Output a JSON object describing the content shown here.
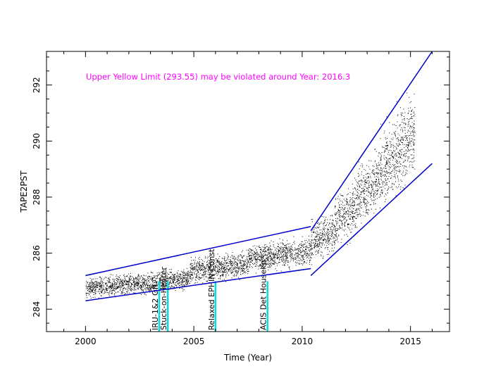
{
  "chart_data": {
    "type": "scatter",
    "title": "",
    "xlabel": "Time (Year)",
    "ylabel": "TAPE2PST",
    "xlim": [
      1998.2,
      2016.8
    ],
    "ylim": [
      283.2,
      293.2
    ],
    "x_ticks": [
      2000,
      2005,
      2010,
      2015
    ],
    "x_tick_labels": [
      "2000",
      "2005",
      "2010",
      "2015"
    ],
    "y_ticks": [
      284,
      286,
      288,
      290,
      292
    ],
    "y_tick_labels": [
      "284",
      "286",
      "288",
      "290",
      "292"
    ],
    "grid": false,
    "legend": "none",
    "annotation": "Upper Yellow  Limit (293.55) may be violated around Year: 2016.3",
    "colors": {
      "points": "#000000",
      "trend_lines": "#0000cc",
      "annotation": "#ff00ff",
      "event_lines": "#00e0e0"
    },
    "events": [
      {
        "x": 2003.4,
        "label": "IRU-1&2 Off"
      },
      {
        "x": 2003.8,
        "label": "Stuck-on-Heater"
      },
      {
        "x": 2006.0,
        "label": "Relaxed EPHIN Const"
      },
      {
        "x": 2008.4,
        "label": "ACIS Det Housekp"
      }
    ],
    "trend_lines": [
      {
        "segment": "early_upper",
        "points": [
          [
            2000.0,
            285.2
          ],
          [
            2010.4,
            286.95
          ]
        ]
      },
      {
        "segment": "early_lower",
        "points": [
          [
            2000.0,
            284.3
          ],
          [
            2010.4,
            285.45
          ]
        ]
      },
      {
        "segment": "late_upper",
        "points": [
          [
            2010.4,
            286.8
          ],
          [
            2016.0,
            293.2
          ]
        ]
      },
      {
        "segment": "late_lower",
        "points": [
          [
            2010.4,
            285.2
          ],
          [
            2016.0,
            289.2
          ]
        ]
      }
    ],
    "scatter_bands": [
      {
        "x_range": [
          2000.0,
          2002.5
        ],
        "y_center": 284.85,
        "y_spread": 0.35
      },
      {
        "x_range": [
          2002.5,
          2004.8
        ],
        "y_center": 285.0,
        "y_spread": 0.4
      },
      {
        "x_range": [
          2004.8,
          2007.5
        ],
        "y_center": 285.5,
        "y_spread": 0.45
      },
      {
        "x_range": [
          2007.5,
          2010.4
        ],
        "y_center": 285.95,
        "y_spread": 0.5
      },
      {
        "x_range": [
          2010.4,
          2011.5
        ],
        "y_center": 286.6,
        "y_spread": 0.7
      },
      {
        "x_range": [
          2011.5,
          2012.5
        ],
        "y_center": 287.4,
        "y_spread": 0.9
      },
      {
        "x_range": [
          2012.5,
          2013.5
        ],
        "y_center": 288.3,
        "y_spread": 1.1
      },
      {
        "x_range": [
          2013.5,
          2014.3
        ],
        "y_center": 289.2,
        "y_spread": 1.3
      },
      {
        "x_range": [
          2014.3,
          2015.2
        ],
        "y_center": 290.0,
        "y_spread": 1.5
      }
    ]
  }
}
